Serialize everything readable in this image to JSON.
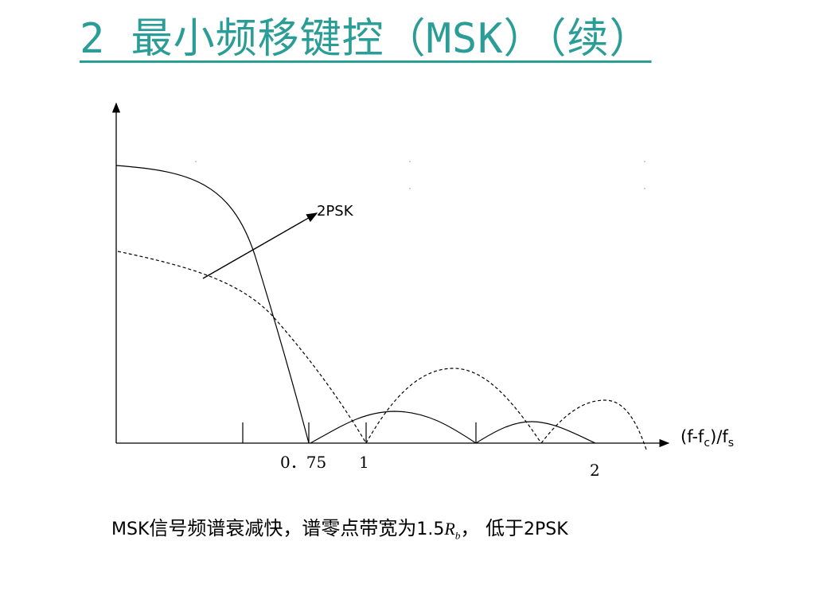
{
  "title": "2 最小频移键控（MSK）（续）",
  "diagram": {
    "label_2psk": "2PSK",
    "axis_x_var": "(f-f",
    "axis_x_sub_c": "c",
    "axis_x_mid": ")/f",
    "axis_x_sub_s": "s",
    "tick_075": "0．75",
    "tick_1": "1",
    "tick_2": "2"
  },
  "caption": {
    "prefix": "MSK",
    "text1": "信号频谱衰减快，谱零点带宽为",
    "value": "1.5",
    "rb_main": "R",
    "rb_sub": "b",
    "text2": "， 低于",
    "suffix": "2PSK"
  }
}
